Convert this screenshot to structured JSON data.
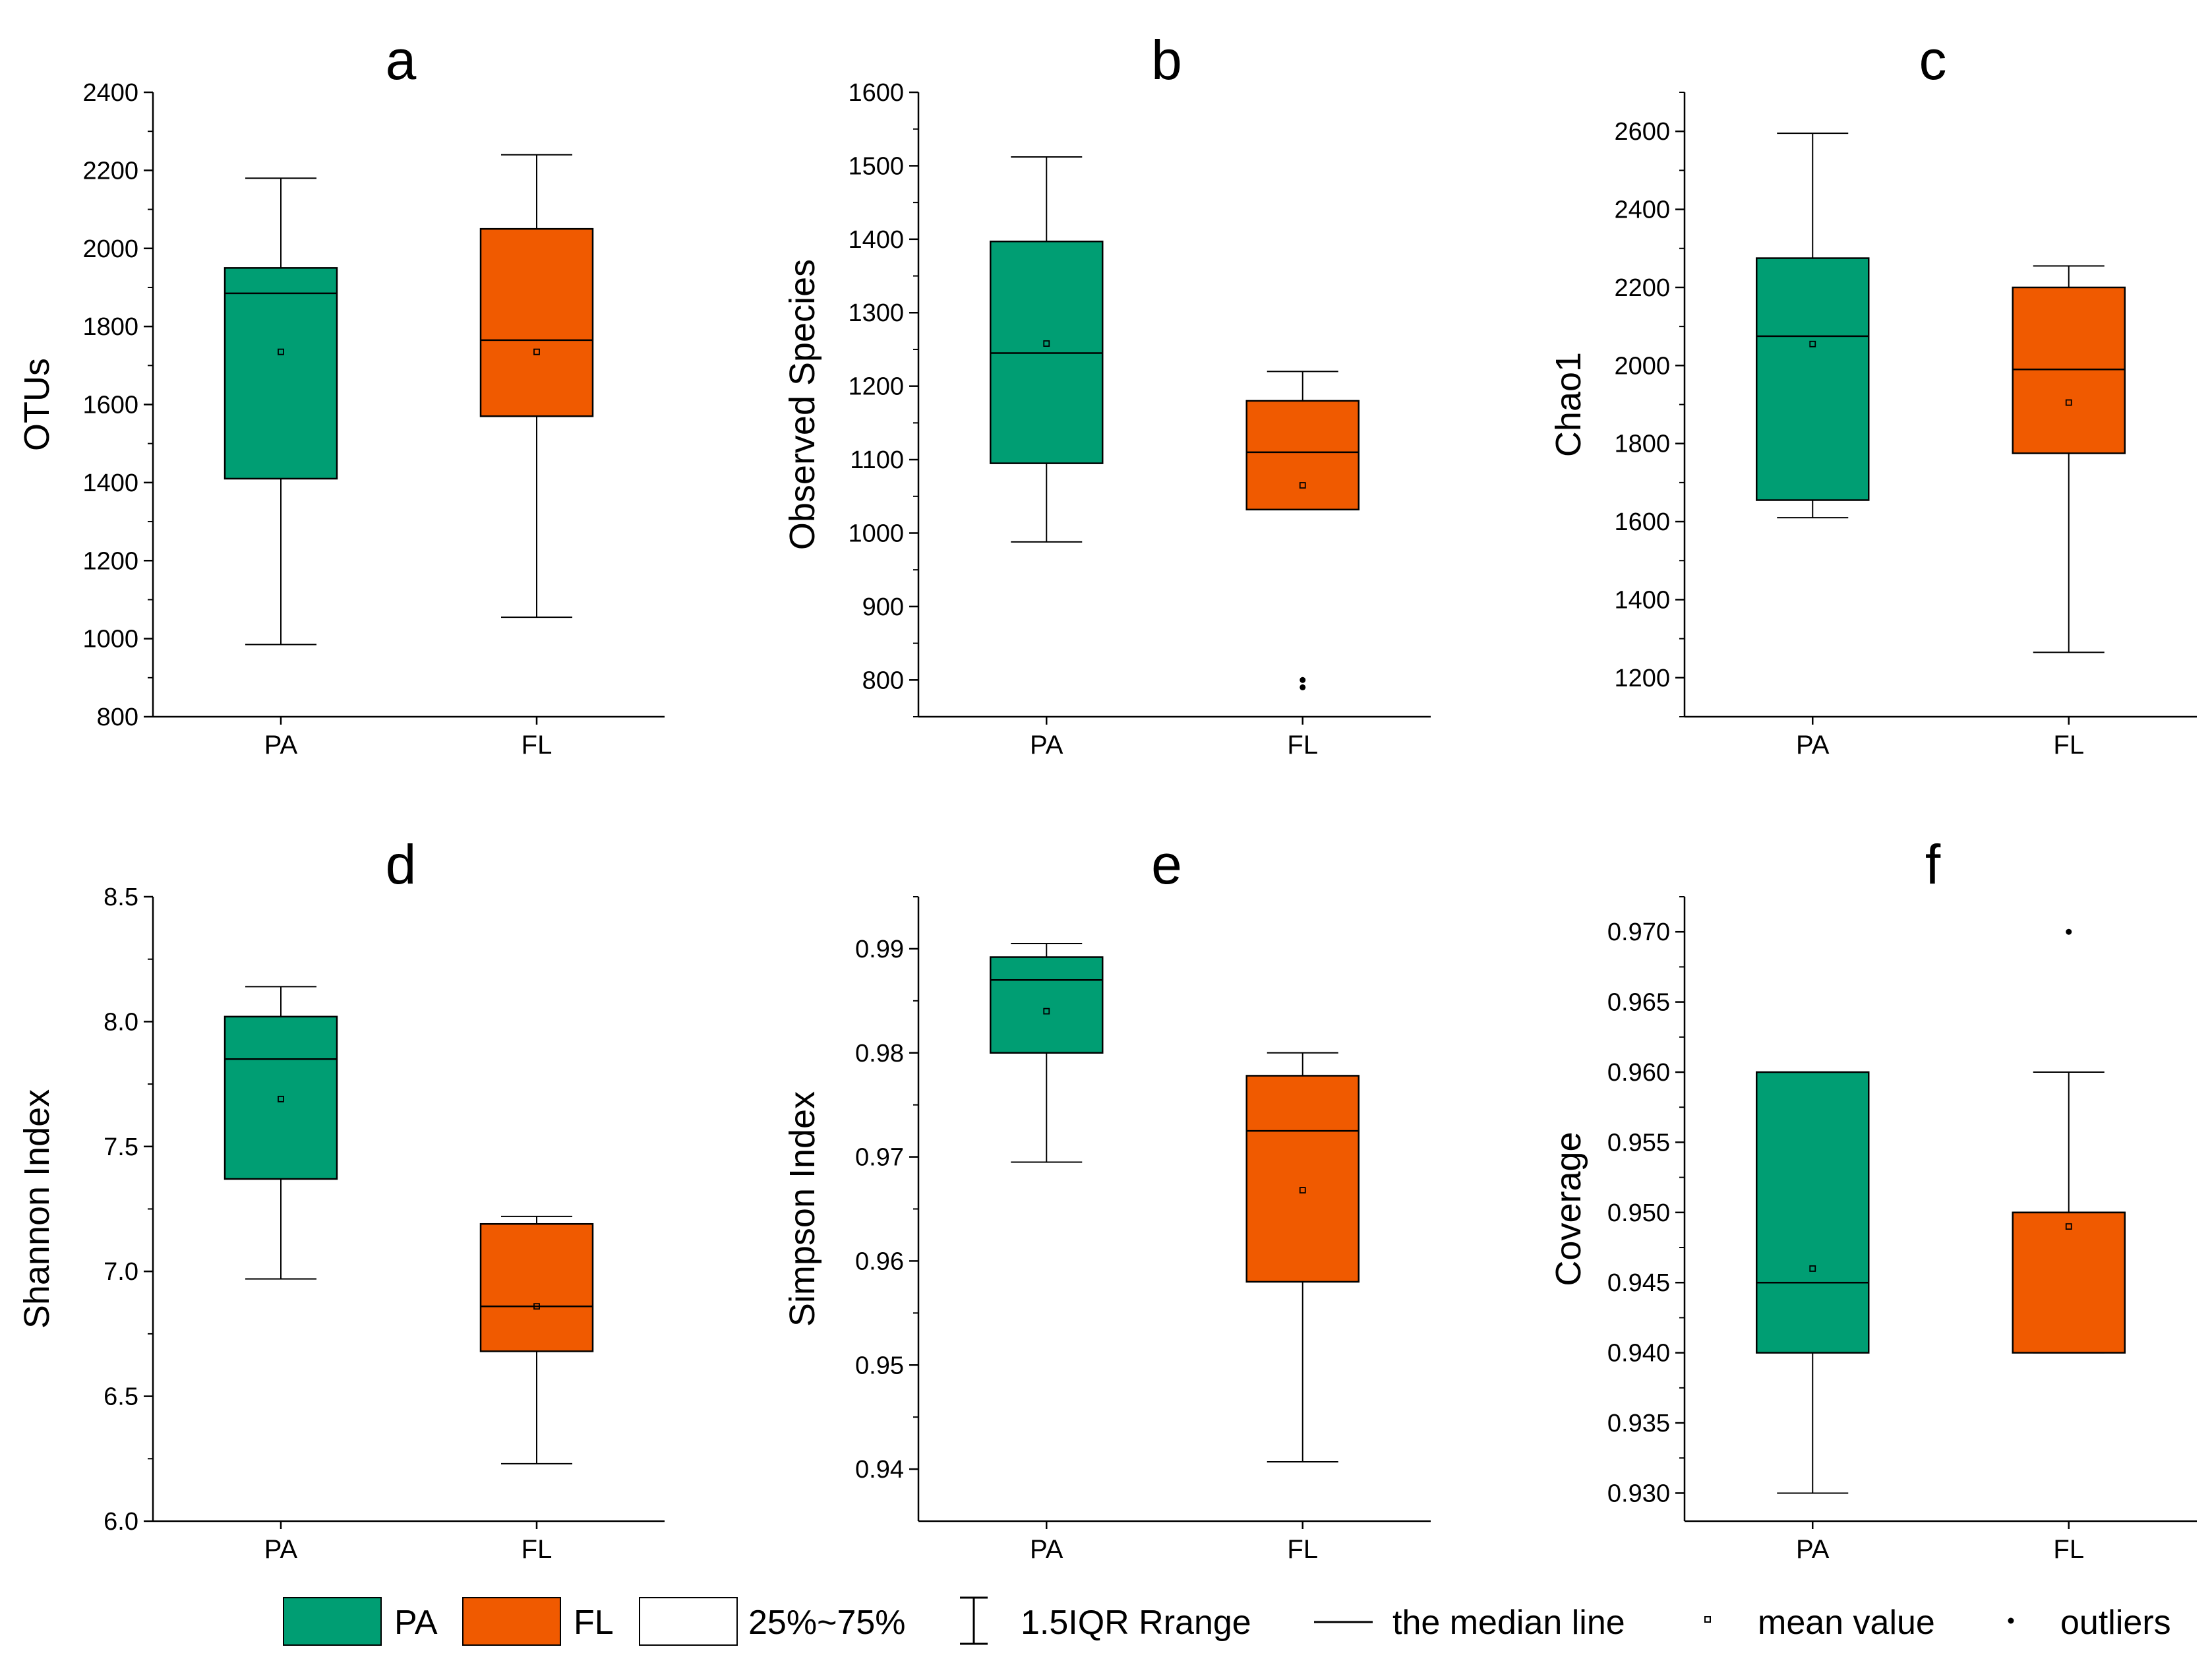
{
  "figure": {
    "colors": {
      "PA": "#009E73",
      "FL": "#F05A00"
    },
    "legend": {
      "pa": "PA",
      "fl": "FL",
      "box": "25%~75%",
      "whisker": "1.5IQR Rrange",
      "median": "the median line",
      "mean": "mean value",
      "outliers": "outliers"
    }
  },
  "chart_data": [
    {
      "panel": "a",
      "type": "box",
      "ylabel": "OTUs",
      "ylim": [
        800,
        2400
      ],
      "yticks": [
        800,
        1000,
        1200,
        1400,
        1600,
        1800,
        2000,
        2200,
        2400
      ],
      "tick_decimals": 0,
      "categories": [
        "PA",
        "FL"
      ],
      "boxes": [
        {
          "name": "PA",
          "q1": 1410,
          "median": 1885,
          "q3": 1950,
          "whisker_low": 985,
          "whisker_high": 2180,
          "mean": 1735,
          "outliers": []
        },
        {
          "name": "FL",
          "q1": 1570,
          "median": 1765,
          "q3": 2050,
          "whisker_low": 1055,
          "whisker_high": 2240,
          "mean": 1735,
          "outliers": []
        }
      ]
    },
    {
      "panel": "b",
      "type": "box",
      "ylabel": "Observed Species",
      "ylim": [
        750,
        1600
      ],
      "yticks": [
        800,
        900,
        1000,
        1100,
        1200,
        1300,
        1400,
        1500,
        1600
      ],
      "tick_decimals": 0,
      "categories": [
        "PA",
        "FL"
      ],
      "boxes": [
        {
          "name": "PA",
          "q1": 1095,
          "median": 1245,
          "q3": 1397,
          "whisker_low": 988,
          "whisker_high": 1512,
          "mean": 1258,
          "outliers": []
        },
        {
          "name": "FL",
          "q1": 1032,
          "median": 1110,
          "q3": 1180,
          "whisker_low": 1032,
          "whisker_high": 1220,
          "mean": 1065,
          "outliers": [
            800,
            790
          ]
        }
      ]
    },
    {
      "panel": "c",
      "type": "box",
      "ylabel": "Chao1",
      "ylim": [
        1100,
        2700
      ],
      "yticks": [
        1200,
        1400,
        1600,
        1800,
        2000,
        2200,
        2400,
        2600
      ],
      "tick_decimals": 0,
      "categories": [
        "PA",
        "FL"
      ],
      "boxes": [
        {
          "name": "PA",
          "q1": 1655,
          "median": 2075,
          "q3": 2275,
          "whisker_low": 1610,
          "whisker_high": 2595,
          "mean": 2055,
          "outliers": []
        },
        {
          "name": "FL",
          "q1": 1775,
          "median": 1990,
          "q3": 2200,
          "whisker_low": 1265,
          "whisker_high": 2255,
          "mean": 1905,
          "outliers": []
        }
      ]
    },
    {
      "panel": "d",
      "type": "box",
      "ylabel": "Shannon Index",
      "ylim": [
        6.0,
        8.5
      ],
      "yticks": [
        6.0,
        6.5,
        7.0,
        7.5,
        8.0,
        8.5
      ],
      "tick_decimals": 1,
      "categories": [
        "PA",
        "FL"
      ],
      "boxes": [
        {
          "name": "PA",
          "q1": 7.37,
          "median": 7.85,
          "q3": 8.02,
          "whisker_low": 6.97,
          "whisker_high": 8.14,
          "mean": 7.69,
          "outliers": []
        },
        {
          "name": "FL",
          "q1": 6.68,
          "median": 6.86,
          "q3": 7.19,
          "whisker_low": 6.23,
          "whisker_high": 7.22,
          "mean": 6.86,
          "outliers": []
        }
      ]
    },
    {
      "panel": "e",
      "type": "box",
      "ylabel": "Simpson Index",
      "ylim": [
        0.935,
        0.995
      ],
      "yticks": [
        0.94,
        0.95,
        0.96,
        0.97,
        0.98,
        0.99
      ],
      "tick_decimals": 2,
      "categories": [
        "PA",
        "FL"
      ],
      "boxes": [
        {
          "name": "PA",
          "q1": 0.98,
          "median": 0.987,
          "q3": 0.9892,
          "whisker_low": 0.9695,
          "whisker_high": 0.9905,
          "mean": 0.984,
          "outliers": []
        },
        {
          "name": "FL",
          "q1": 0.958,
          "median": 0.9725,
          "q3": 0.9778,
          "whisker_low": 0.9407,
          "whisker_high": 0.98,
          "mean": 0.9668,
          "outliers": []
        }
      ]
    },
    {
      "panel": "f",
      "type": "box",
      "ylabel": "Coverage",
      "ylim": [
        0.928,
        0.9725
      ],
      "yticks": [
        0.93,
        0.935,
        0.94,
        0.945,
        0.95,
        0.955,
        0.96,
        0.965,
        0.97
      ],
      "tick_decimals": 3,
      "categories": [
        "PA",
        "FL"
      ],
      "boxes": [
        {
          "name": "PA",
          "q1": 0.94,
          "median": 0.945,
          "q3": 0.96,
          "whisker_low": 0.93,
          "whisker_high": 0.96,
          "mean": 0.946,
          "outliers": []
        },
        {
          "name": "FL",
          "q1": 0.94,
          "median": 0.95,
          "q3": 0.95,
          "whisker_low": 0.94,
          "whisker_high": 0.96,
          "mean": 0.949,
          "outliers": [
            0.97
          ]
        }
      ]
    }
  ]
}
